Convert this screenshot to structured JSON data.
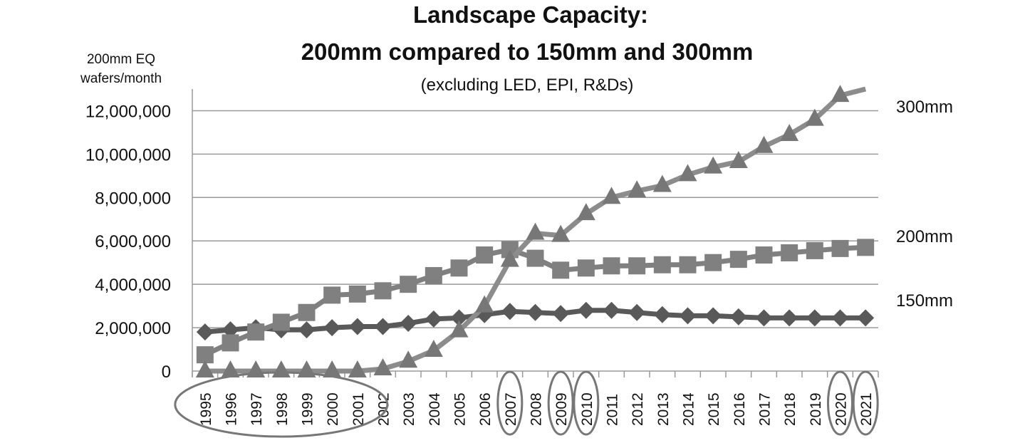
{
  "chart_data": {
    "type": "line",
    "title_line1": "Landscape Capacity:",
    "title_line2": "200mm compared to 150mm and 300mm",
    "subtitle": "(excluding LED, EPI, R&Ds)",
    "ylabel_line1": "200mm EQ",
    "ylabel_line2": "wafers/month",
    "xlabel": "",
    "ylim": [
      0,
      13000000
    ],
    "yticks": [
      0,
      2000000,
      4000000,
      6000000,
      8000000,
      10000000,
      12000000
    ],
    "ytick_labels": [
      "0",
      "2,000,000",
      "4,000,000",
      "6,000,000",
      "8,000,000",
      "10,000,000",
      "12,000,000"
    ],
    "grid": true,
    "categories": [
      "1995",
      "1996",
      "1997",
      "1998",
      "1999",
      "2000",
      "2001",
      "2002",
      "2003",
      "2004",
      "2005",
      "2006",
      "2007",
      "2008",
      "2009",
      "2010",
      "2011",
      "2012",
      "2013",
      "2014",
      "2015",
      "2016",
      "2017",
      "2018",
      "2019",
      "2020",
      "2021"
    ],
    "highlighted_categories": [
      "2007",
      "2009",
      "2010",
      "2020",
      "2021"
    ],
    "highlighted_range": [
      "1995",
      "2001"
    ],
    "series": [
      {
        "name": "150mm",
        "marker": "diamond",
        "color": "#595959",
        "values": [
          1800000,
          1900000,
          2000000,
          1900000,
          1900000,
          2000000,
          2050000,
          2050000,
          2200000,
          2400000,
          2450000,
          2600000,
          2750000,
          2700000,
          2650000,
          2800000,
          2800000,
          2700000,
          2600000,
          2550000,
          2550000,
          2500000,
          2450000,
          2450000,
          2450000,
          2450000,
          2450000
        ]
      },
      {
        "name": "200mm",
        "marker": "square",
        "color": "#808080",
        "values": [
          750000,
          1300000,
          1800000,
          2250000,
          2700000,
          3500000,
          3550000,
          3700000,
          4000000,
          4400000,
          4750000,
          5350000,
          5600000,
          5200000,
          4650000,
          4750000,
          4850000,
          4850000,
          4900000,
          4900000,
          5000000,
          5150000,
          5350000,
          5450000,
          5550000,
          5650000,
          5700000
        ]
      },
      {
        "name": "300mm",
        "marker": "triangle",
        "color": "#8c8c8c",
        "values": [
          0,
          0,
          0,
          0,
          0,
          0,
          0,
          100000,
          450000,
          950000,
          1850000,
          3000000,
          5100000,
          6350000,
          6250000,
          7250000,
          8000000,
          8300000,
          8550000,
          9050000,
          9400000,
          9650000,
          10350000,
          10900000,
          11600000,
          12700000,
          13000000
        ]
      }
    ]
  }
}
